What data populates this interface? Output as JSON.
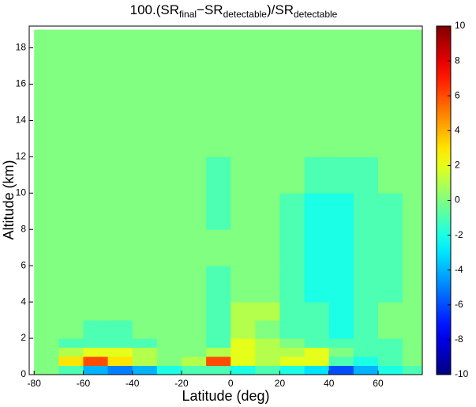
{
  "chart_data": {
    "type": "heatmap",
    "title": [
      "100.(SR",
      "final",
      "−SR",
      "detectable",
      ")/SR",
      "detectable"
    ],
    "x_label": "Latitude (deg)",
    "y_label": "Altitude (km)",
    "xbins": [
      -80,
      -70,
      -60,
      -50,
      -40,
      -30,
      -20,
      -10,
      0,
      10,
      20,
      30,
      40,
      50,
      60,
      70,
      78
    ],
    "ybins": [
      0,
      0.5,
      1,
      1.5,
      2,
      3,
      4,
      6,
      8,
      10,
      12,
      14,
      19
    ],
    "z": [
      [
        0,
        -1,
        -4,
        -5,
        -4,
        -2,
        -1,
        -1,
        -2,
        -1,
        -2,
        -3,
        -6,
        -4,
        -2,
        -1
      ],
      [
        0,
        3,
        6,
        3,
        1,
        0,
        1,
        6,
        2,
        1,
        2,
        2,
        -1,
        -2,
        -1,
        0
      ],
      [
        0,
        1,
        2,
        2,
        1,
        0,
        0,
        1,
        2,
        1,
        1,
        2,
        0,
        -1,
        -1,
        0
      ],
      [
        0,
        -1,
        -1,
        -1,
        -1,
        0,
        0,
        -1,
        2,
        1,
        0,
        -1,
        -1,
        -1,
        -1,
        0
      ],
      [
        0,
        0,
        -1,
        -1,
        0,
        0,
        0,
        -1,
        1,
        0,
        -1,
        -1,
        -2,
        -1,
        0,
        0
      ],
      [
        0,
        0,
        0,
        0,
        0,
        0,
        0,
        -1,
        1,
        1,
        -1,
        -1,
        -2,
        -1,
        0,
        0
      ],
      [
        0,
        0,
        0,
        0,
        0,
        0,
        0,
        -1,
        0,
        0,
        -1,
        -2,
        -2,
        -1,
        -1,
        0
      ],
      [
        0,
        0,
        0,
        0,
        0,
        0,
        0,
        0,
        0,
        0,
        -1,
        -2,
        -2,
        -1,
        -1,
        0
      ],
      [
        0,
        0,
        0,
        0,
        0,
        0,
        0,
        -1,
        0,
        0,
        -1,
        -2,
        -2,
        -1,
        -1,
        0
      ],
      [
        0,
        0,
        0,
        0,
        0,
        0,
        0,
        -1,
        0,
        0,
        0,
        -1,
        -1,
        -1,
        0,
        0
      ],
      [
        0,
        0,
        0,
        0,
        0,
        0,
        0,
        0,
        0,
        0,
        0,
        0,
        0,
        0,
        0,
        0
      ],
      [
        0,
        0,
        0,
        0,
        0,
        0,
        0,
        0,
        0,
        0,
        0,
        0,
        0,
        0,
        0,
        0
      ]
    ],
    "xlim": [
      -82,
      78
    ],
    "ylim": [
      0,
      19.2
    ],
    "xticks": [
      -80,
      -60,
      -40,
      -20,
      0,
      20,
      40,
      60
    ],
    "yticks": [
      0,
      2,
      4,
      6,
      8,
      10,
      12,
      14,
      16,
      18
    ],
    "zlim": [
      -10,
      10
    ],
    "zticks": [
      -10,
      -8,
      -6,
      -4,
      -2,
      0,
      2,
      4,
      6,
      8,
      10
    ],
    "colormap": "jet"
  }
}
